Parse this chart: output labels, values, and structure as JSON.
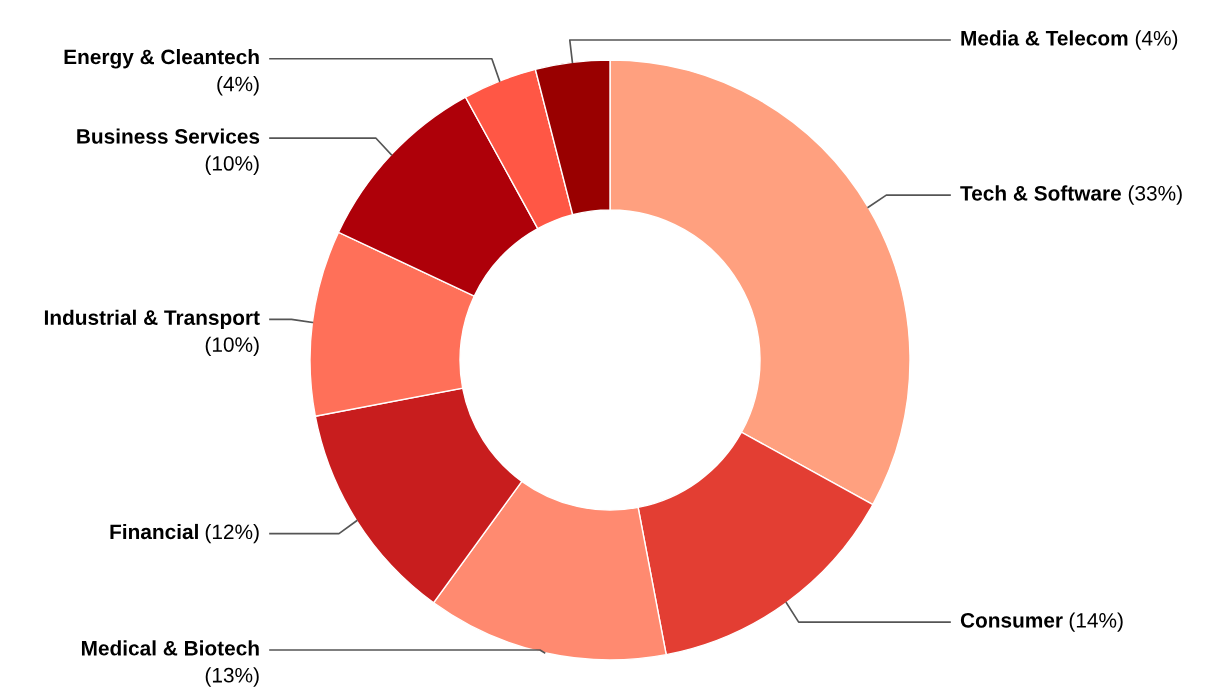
{
  "chart_data": {
    "type": "donut",
    "categories": [
      "Tech & Software",
      "Consumer",
      "Medical & Biotech",
      "Financial",
      "Industrial & Transport",
      "Business Services",
      "Energy & Cleantech",
      "Media & Telecom"
    ],
    "values": [
      33,
      14,
      13,
      12,
      10,
      10,
      4,
      4
    ],
    "value_labels": [
      "(33%)",
      "(14%)",
      "(13%)",
      "(12%)",
      "(10%)",
      "(10%)",
      "(4%)",
      "(4%)"
    ],
    "colors": [
      "#ffa07f",
      "#e33e33",
      "#ff8a70",
      "#c81d1e",
      "#ff7059",
      "#ae0009",
      "#ff5745",
      "#990000"
    ],
    "legend": false
  }
}
